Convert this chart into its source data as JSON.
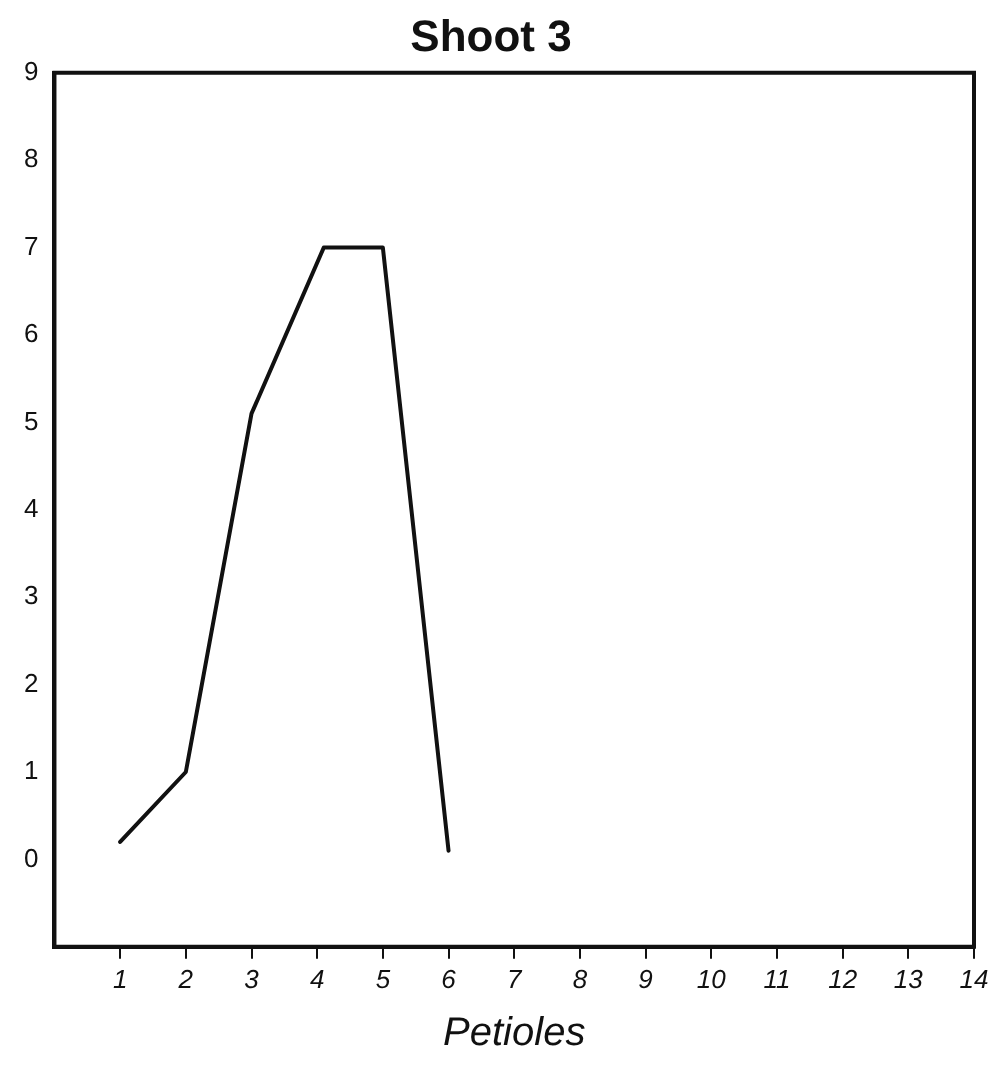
{
  "chart_data": {
    "type": "line",
    "title": "Shoot 3",
    "xlabel": "Petioles",
    "x": [
      1,
      2,
      3,
      4.1,
      5,
      6
    ],
    "series": [
      {
        "color": "#111111",
        "values": [
          0.2,
          1.0,
          5.1,
          7.0,
          7.0,
          0.1
        ]
      }
    ],
    "xlim": [
      0,
      14
    ],
    "xticks": [
      1,
      2,
      3,
      4,
      5,
      6,
      7,
      8,
      9,
      10,
      11,
      12,
      13,
      14
    ],
    "ylim": [
      -1,
      9
    ],
    "yticks": [
      0,
      1,
      2,
      3,
      4,
      5,
      6,
      7,
      8,
      9
    ],
    "grid": false,
    "legend": false,
    "marker": "none",
    "line_style": "solid"
  }
}
